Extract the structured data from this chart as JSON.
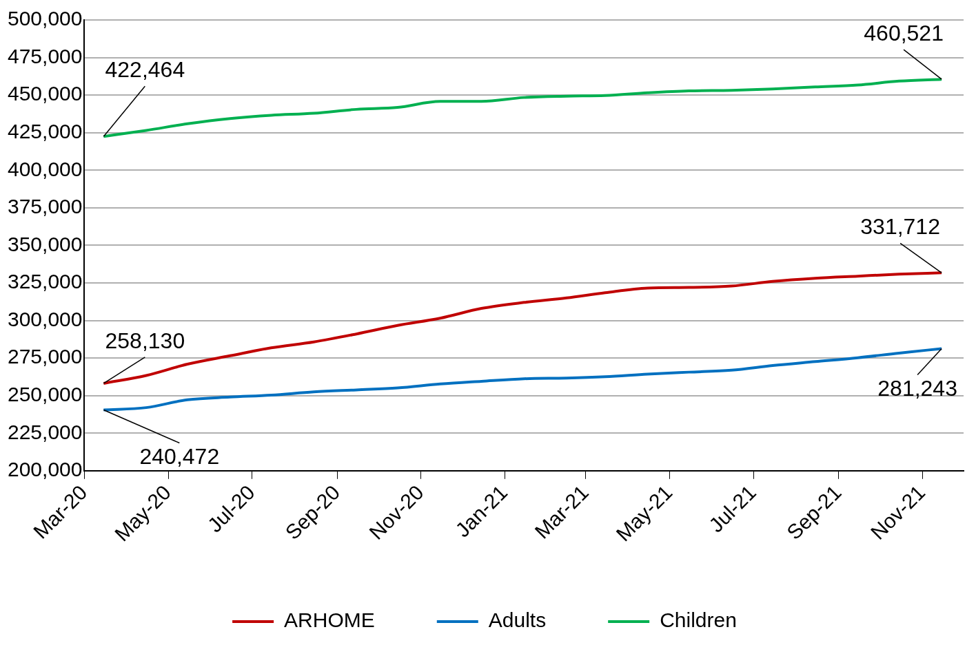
{
  "chart_data": {
    "type": "line",
    "x": [
      "2020-03-15",
      "2020-04-15",
      "2020-05-15",
      "2020-06-15",
      "2020-07-15",
      "2020-08-15",
      "2020-09-15",
      "2020-10-15",
      "2020-11-15",
      "2020-12-15",
      "2021-01-15",
      "2021-02-15",
      "2021-03-15",
      "2021-04-15",
      "2021-05-15",
      "2021-06-15",
      "2021-07-15",
      "2021-08-15",
      "2021-09-15",
      "2021-10-15",
      "2021-11-15"
    ],
    "series": [
      {
        "name": "ARHOME",
        "color": "#c00000",
        "values": [
          258130,
          263400,
          270900,
          276500,
          281800,
          285700,
          291000,
          296700,
          301500,
          308000,
          312000,
          315000,
          318500,
          321600,
          322000,
          322900,
          326000,
          328100,
          329500,
          330800,
          331712
        ]
      },
      {
        "name": "Adults",
        "color": "#0070c0",
        "values": [
          240472,
          242000,
          247200,
          249000,
          250300,
          252500,
          253800,
          255100,
          257700,
          259500,
          261200,
          261700,
          262600,
          264300,
          265600,
          266900,
          270000,
          272600,
          275200,
          278300,
          281243
        ]
      },
      {
        "name": "Children",
        "color": "#00b050",
        "values": [
          422464,
          426500,
          430900,
          434400,
          436600,
          437900,
          440500,
          441800,
          445800,
          445800,
          448400,
          449300,
          449700,
          451500,
          452800,
          453200,
          454100,
          455400,
          456700,
          459300,
          460521
        ]
      }
    ],
    "xlim": [
      "2020-03-01",
      "2021-12-01"
    ],
    "xticks": [
      {
        "value": "2020-03-01",
        "label": "Mar-20"
      },
      {
        "value": "2020-05-01",
        "label": "May-20"
      },
      {
        "value": "2020-07-01",
        "label": "Jul-20"
      },
      {
        "value": "2020-09-01",
        "label": "Sep-20"
      },
      {
        "value": "2020-11-01",
        "label": "Nov-20"
      },
      {
        "value": "2021-01-01",
        "label": "Jan-21"
      },
      {
        "value": "2021-03-01",
        "label": "Mar-21"
      },
      {
        "value": "2021-05-01",
        "label": "May-21"
      },
      {
        "value": "2021-07-01",
        "label": "Jul-21"
      },
      {
        "value": "2021-09-01",
        "label": "Sep-21"
      },
      {
        "value": "2021-11-01",
        "label": "Nov-21"
      }
    ],
    "ylim": [
      200000,
      500000
    ],
    "yticks": [
      {
        "value": 200000,
        "label": "200,000"
      },
      {
        "value": 225000,
        "label": "225,000"
      },
      {
        "value": 250000,
        "label": "250,000"
      },
      {
        "value": 275000,
        "label": "275,000"
      },
      {
        "value": 300000,
        "label": "300,000"
      },
      {
        "value": 325000,
        "label": "325,000"
      },
      {
        "value": 350000,
        "label": "350,000"
      },
      {
        "value": 375000,
        "label": "375,000"
      },
      {
        "value": 400000,
        "label": "400,000"
      },
      {
        "value": 425000,
        "label": "425,000"
      },
      {
        "value": 450000,
        "label": "450,000"
      },
      {
        "value": 475000,
        "label": "475,000"
      },
      {
        "value": 500000,
        "label": "500,000"
      }
    ],
    "annotations": [
      {
        "text": "422,464",
        "x": "2020-03-15",
        "y": 422464
      },
      {
        "text": "460,521",
        "x": "2021-11-15",
        "y": 460521
      },
      {
        "text": "258,130",
        "x": "2020-03-15",
        "y": 258130
      },
      {
        "text": "331,712",
        "x": "2021-11-15",
        "y": 331712
      },
      {
        "text": "240,472",
        "x": "2020-03-15",
        "y": 240472
      },
      {
        "text": "281,243",
        "x": "2021-11-15",
        "y": 281243
      }
    ],
    "grid": "y",
    "legend": "bottom",
    "marker": "none",
    "line_style": "solid"
  }
}
